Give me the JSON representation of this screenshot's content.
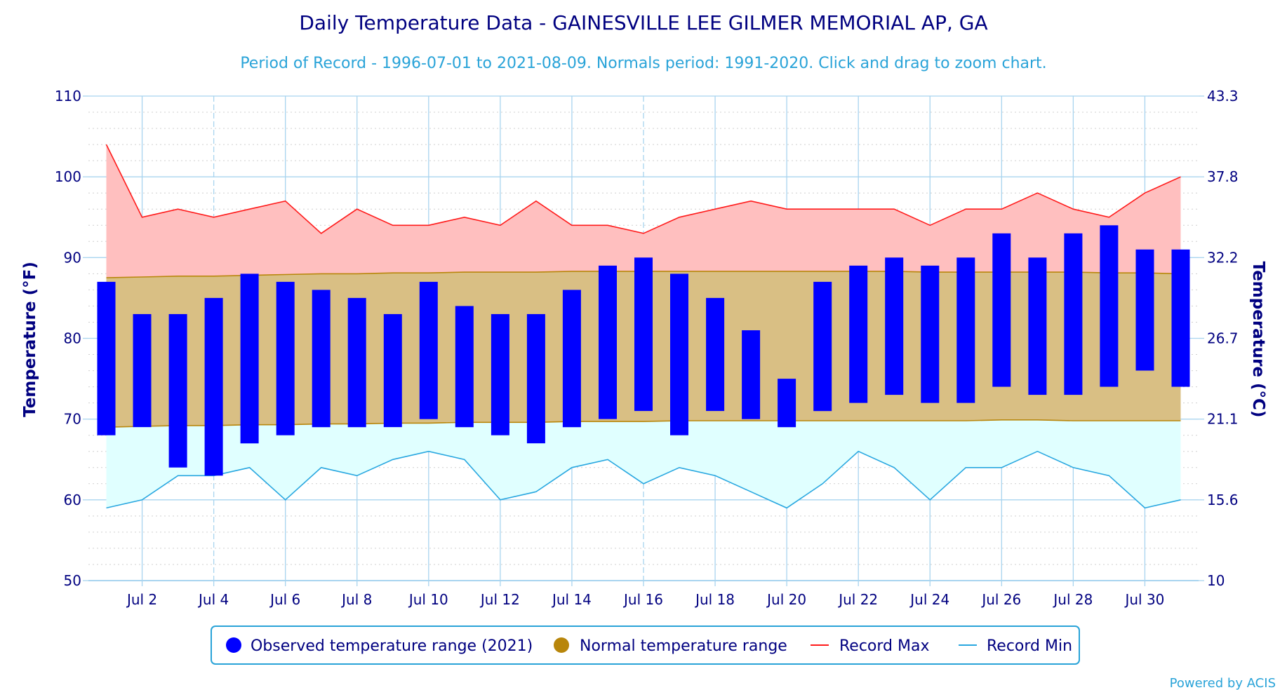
{
  "colors": {
    "observed": "#0000ff",
    "normal_fill": "#d9bf84",
    "normal_line": "#b8860b",
    "record_max_line": "#ff1a1a",
    "record_max_fill": "#ffbfbf",
    "record_min_line": "#28a7e0",
    "record_min_fill": "#e0ffff",
    "title": "#000080",
    "subtitle": "#29a3d8",
    "grid": "#a8d4ef"
  },
  "chart_data": {
    "type": "bar",
    "title": "Daily Temperature Data - GAINESVILLE LEE GILMER MEMORIAL AP, GA",
    "subtitle": "Period of Record - 1996-07-01 to 2021-08-09. Normals period: 1991-2020. Click and drag to zoom chart.",
    "ylabel": "Temperature (°F)",
    "ylabel_right": "Temperature (°C)",
    "ylim": [
      50,
      110
    ],
    "yticks": [
      50,
      60,
      70,
      80,
      90,
      100,
      110
    ],
    "yticks_right": [
      "10",
      "15.6",
      "21.1",
      "26.7",
      "32.2",
      "37.8",
      "43.3"
    ],
    "x_tick_labels": [
      {
        "day": 2,
        "label": "Jul 2"
      },
      {
        "day": 4,
        "label": "Jul 4"
      },
      {
        "day": 6,
        "label": "Jul 6"
      },
      {
        "day": 8,
        "label": "Jul 8"
      },
      {
        "day": 10,
        "label": "Jul 10"
      },
      {
        "day": 12,
        "label": "Jul 12"
      },
      {
        "day": 14,
        "label": "Jul 14"
      },
      {
        "day": 16,
        "label": "Jul 16"
      },
      {
        "day": 18,
        "label": "Jul 18"
      },
      {
        "day": 20,
        "label": "Jul 20"
      },
      {
        "day": 22,
        "label": "Jul 22"
      },
      {
        "day": 24,
        "label": "Jul 24"
      },
      {
        "day": 26,
        "label": "Jul 26"
      },
      {
        "day": 28,
        "label": "Jul 28"
      },
      {
        "day": 30,
        "label": "Jul 30"
      }
    ],
    "days": [
      1,
      2,
      3,
      4,
      5,
      6,
      7,
      8,
      9,
      10,
      11,
      12,
      13,
      14,
      15,
      16,
      17,
      18,
      19,
      20,
      21,
      22,
      23,
      24,
      25,
      26,
      27,
      28,
      29,
      30,
      31
    ],
    "series": [
      {
        "name": "Observed temperature range (2021)",
        "low": [
          68,
          69,
          64,
          63,
          67,
          68,
          69,
          69,
          69,
          70,
          69,
          68,
          67,
          69,
          70,
          71,
          68,
          71,
          70,
          69,
          71,
          72,
          73,
          72,
          72,
          74,
          73,
          73,
          74,
          76,
          74
        ],
        "high": [
          87,
          83,
          83,
          85,
          88,
          87,
          86,
          85,
          83,
          87,
          84,
          83,
          83,
          86,
          89,
          90,
          88,
          85,
          81,
          75,
          87,
          89,
          90,
          89,
          90,
          93,
          90,
          93,
          94,
          91,
          91
        ]
      },
      {
        "name": "Normal temperature range",
        "low": [
          69,
          69.1,
          69.2,
          69.2,
          69.3,
          69.3,
          69.4,
          69.4,
          69.5,
          69.5,
          69.6,
          69.6,
          69.6,
          69.7,
          69.7,
          69.7,
          69.8,
          69.8,
          69.8,
          69.8,
          69.8,
          69.8,
          69.8,
          69.8,
          69.8,
          69.9,
          69.9,
          69.8,
          69.8,
          69.8,
          69.8
        ],
        "high": [
          87.5,
          87.6,
          87.7,
          87.7,
          87.8,
          87.9,
          88,
          88,
          88.1,
          88.1,
          88.2,
          88.2,
          88.2,
          88.3,
          88.3,
          88.3,
          88.3,
          88.3,
          88.3,
          88.3,
          88.3,
          88.3,
          88.3,
          88.2,
          88.2,
          88.2,
          88.2,
          88.2,
          88.1,
          88.1,
          88
        ]
      },
      {
        "name": "Record Max",
        "values": [
          104,
          95,
          96,
          95,
          96,
          97,
          93,
          96,
          94,
          94,
          95,
          94,
          97,
          94,
          94,
          93,
          95,
          96,
          97,
          96,
          96,
          96,
          96,
          94,
          96,
          96,
          98,
          96,
          95,
          98,
          100
        ]
      },
      {
        "name": "Record Min",
        "values": [
          59,
          60,
          63,
          63,
          64,
          60,
          64,
          63,
          65,
          66,
          65,
          60,
          61,
          64,
          65,
          62,
          64,
          63,
          61,
          59,
          62,
          66,
          64,
          60,
          64,
          64,
          66,
          64,
          63,
          59,
          60
        ]
      }
    ],
    "legend_position": "bottom-center",
    "grid": true
  },
  "legend": {
    "observed": "Observed temperature range (2021)",
    "normal": "Normal temperature range",
    "record_max": "Record Max",
    "record_min": "Record Min"
  },
  "credit": "Powered by ACIS"
}
